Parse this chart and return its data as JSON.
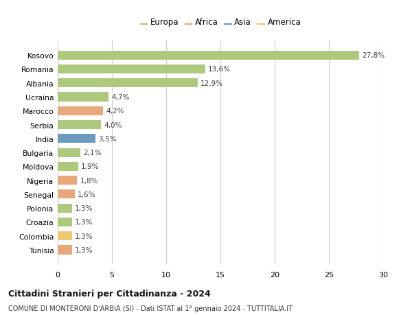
{
  "countries": [
    "Kosovo",
    "Romania",
    "Albania",
    "Ucraina",
    "Marocco",
    "Serbia",
    "India",
    "Bulgaria",
    "Moldova",
    "Nigeria",
    "Senegal",
    "Polonia",
    "Croazia",
    "Colombia",
    "Tunisia"
  ],
  "values": [
    27.8,
    13.6,
    12.9,
    4.7,
    4.2,
    4.0,
    3.5,
    2.1,
    1.9,
    1.8,
    1.6,
    1.3,
    1.3,
    1.3,
    1.3
  ],
  "labels": [
    "27,8%",
    "13,6%",
    "12,9%",
    "4,7%",
    "4,2%",
    "4,0%",
    "3,5%",
    "2,1%",
    "1,9%",
    "1,8%",
    "1,6%",
    "1,3%",
    "1,3%",
    "1,3%",
    "1,3%"
  ],
  "continents": [
    "Europa",
    "Europa",
    "Europa",
    "Europa",
    "Africa",
    "Europa",
    "Asia",
    "Europa",
    "Europa",
    "Africa",
    "Africa",
    "Europa",
    "Europa",
    "America",
    "Africa"
  ],
  "colors": {
    "Europa": "#adc97e",
    "Africa": "#e8a87c",
    "Asia": "#6a9bbf",
    "America": "#f0c96e"
  },
  "title": "Cittadini Stranieri per Cittadinanza - 2024",
  "subtitle": "COMUNE DI MONTERONI D'ARBIA (SI) - Dati ISTAT al 1° gennaio 2024 - TUTTITALIA.IT",
  "xlim": [
    0,
    30
  ],
  "xticks": [
    0,
    5,
    10,
    15,
    20,
    25,
    30
  ],
  "background_color": "#ffffff",
  "grid_color": "#cccccc",
  "legend_order": [
    "Europa",
    "Africa",
    "Asia",
    "America"
  ]
}
